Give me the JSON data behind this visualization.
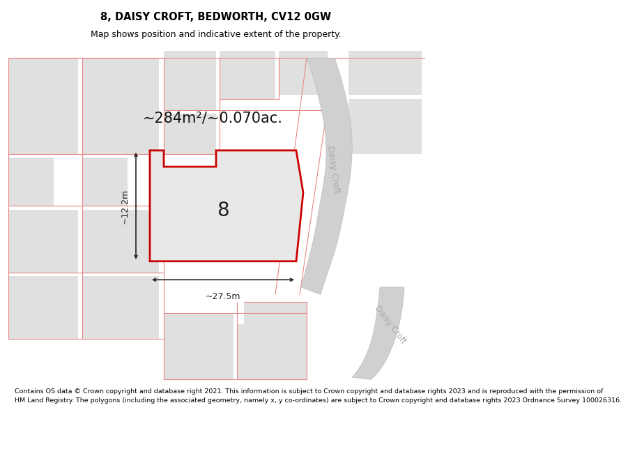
{
  "title": "8, DAISY CROFT, BEDWORTH, CV12 0GW",
  "subtitle": "Map shows position and indicative extent of the property.",
  "footer_line1": "Contains OS data © Crown copyright and database right 2021. This information is subject to Crown copyright and database rights 2023 and is reproduced with the permission of",
  "footer_line2": "HM Land Registry. The polygons (including the associated geometry, namely x, y co-ordinates) are subject to Crown copyright and database rights 2023 Ordnance Survey 100026316.",
  "area_label": "~284m²/~0.070ac.",
  "number_label": "8",
  "width_label": "~27.5m",
  "height_label": "~12.2m",
  "road_label_1": "Daisy Croft",
  "road_label_2": "Daisy Croft",
  "map_bg": "#f2f2f2",
  "building_fill": "#e0e0e0",
  "road_fill": "#d0d0d0",
  "road_edge": "#bbbbbb",
  "red_line_color": "#e88888",
  "polygon_fill": "#e8e8e8",
  "polygon_edge": "#cc0000",
  "polygon_edge_width": 2.0,
  "dim_color": "#222222",
  "title_fontsize": 10.5,
  "subtitle_fontsize": 9,
  "area_fontsize": 15,
  "number_fontsize": 20,
  "dim_fontsize": 9,
  "road_fontsize": 9,
  "footer_fontsize": 6.8
}
